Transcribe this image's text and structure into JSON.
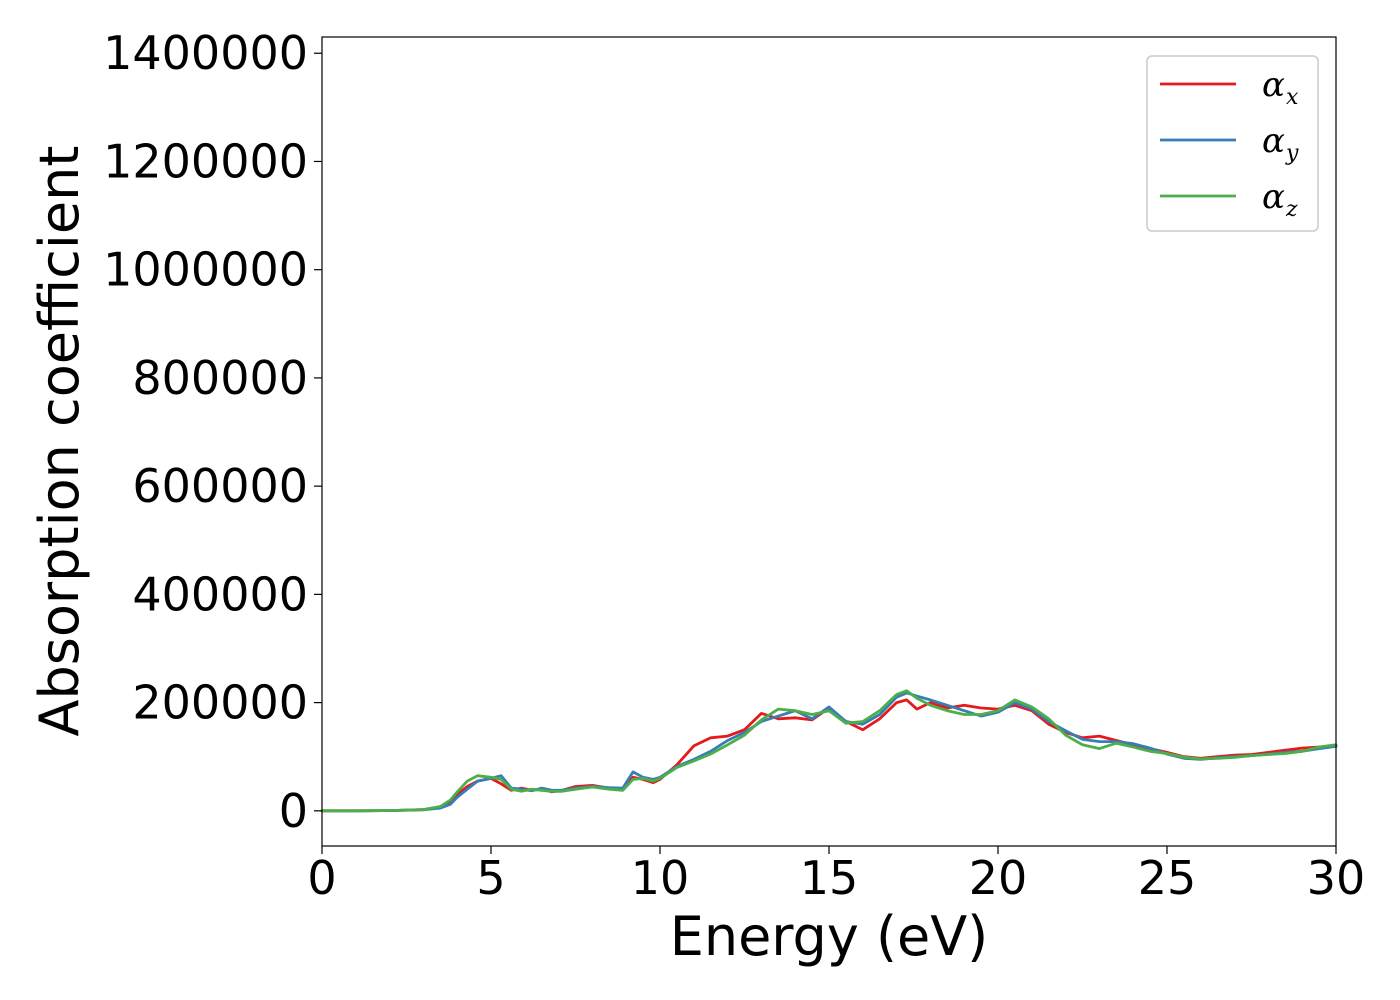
{
  "chart_data": {
    "type": "line",
    "title": "",
    "xlabel": "Energy (eV)",
    "ylabel": "Absorption coefficient",
    "xlim": [
      0,
      30
    ],
    "ylim": [
      -65000,
      1430000
    ],
    "xticks": [
      "0",
      "5",
      "10",
      "15",
      "20",
      "25",
      "30"
    ],
    "yticks": [
      "0",
      "200000",
      "400000",
      "600000",
      "800000",
      "1000000",
      "1200000",
      "1400000"
    ],
    "grid": false,
    "legend_position": "top-right",
    "x": [
      0,
      1,
      2,
      3,
      3.5,
      3.8,
      4.0,
      4.3,
      4.6,
      5.0,
      5.3,
      5.6,
      5.9,
      6.2,
      6.5,
      6.8,
      7.1,
      7.5,
      8.0,
      8.5,
      8.9,
      9.2,
      9.5,
      9.8,
      10.0,
      10.5,
      11.0,
      11.5,
      12.0,
      12.5,
      13.0,
      13.5,
      14.0,
      14.5,
      15.0,
      15.5,
      16.0,
      16.5,
      17.0,
      17.3,
      17.6,
      18.0,
      18.5,
      19.0,
      19.5,
      20.0,
      20.5,
      21.0,
      21.5,
      22.0,
      22.5,
      23.0,
      23.5,
      24.0,
      24.5,
      25.0,
      25.5,
      26.0,
      26.5,
      27.0,
      27.5,
      28.0,
      28.5,
      29.0,
      29.5,
      30.0
    ],
    "series": [
      {
        "name": "α_x",
        "legend_main": "α",
        "legend_sub": "x",
        "color": "#e41a1c",
        "values": [
          0,
          0,
          500,
          2000,
          6000,
          15000,
          30000,
          45000,
          55000,
          60000,
          50000,
          38000,
          42000,
          38000,
          40000,
          35000,
          38000,
          45000,
          47000,
          42000,
          40000,
          62000,
          58000,
          52000,
          58000,
          85000,
          120000,
          135000,
          138000,
          150000,
          180000,
          170000,
          172000,
          168000,
          190000,
          165000,
          150000,
          170000,
          200000,
          205000,
          188000,
          200000,
          190000,
          195000,
          190000,
          188000,
          195000,
          185000,
          160000,
          145000,
          135000,
          138000,
          130000,
          122000,
          115000,
          108000,
          100000,
          97000,
          100000,
          103000,
          104000,
          108000,
          112000,
          116000,
          118000,
          120000
        ]
      },
      {
        "name": "α_y",
        "legend_main": "α",
        "legend_sub": "y",
        "color": "#377eb8",
        "values": [
          0,
          0,
          500,
          2000,
          5000,
          12000,
          25000,
          40000,
          55000,
          60000,
          65000,
          42000,
          40000,
          37000,
          42000,
          38000,
          38000,
          42000,
          45000,
          43000,
          42000,
          72000,
          62000,
          58000,
          62000,
          82000,
          95000,
          110000,
          130000,
          145000,
          165000,
          175000,
          185000,
          170000,
          192000,
          165000,
          160000,
          178000,
          210000,
          218000,
          212000,
          205000,
          195000,
          185000,
          175000,
          182000,
          200000,
          188000,
          165000,
          148000,
          132000,
          128000,
          128000,
          124000,
          116000,
          105000,
          97000,
          95000,
          98000,
          100000,
          102000,
          105000,
          108000,
          110000,
          115000,
          119000
        ]
      },
      {
        "name": "α_z",
        "legend_main": "α",
        "legend_sub": "z",
        "color": "#4daf4a",
        "values": [
          0,
          0,
          500,
          2500,
          8000,
          20000,
          35000,
          55000,
          65000,
          62000,
          58000,
          40000,
          36000,
          40000,
          38000,
          36000,
          36000,
          40000,
          44000,
          40000,
          38000,
          58000,
          60000,
          55000,
          60000,
          80000,
          92000,
          105000,
          122000,
          140000,
          168000,
          188000,
          185000,
          178000,
          185000,
          162000,
          165000,
          185000,
          215000,
          222000,
          208000,
          195000,
          185000,
          178000,
          178000,
          185000,
          205000,
          192000,
          170000,
          140000,
          122000,
          115000,
          125000,
          118000,
          110000,
          106000,
          99000,
          96000,
          97000,
          99000,
          102000,
          104000,
          106000,
          110000,
          118000,
          122000
        ]
      }
    ]
  }
}
